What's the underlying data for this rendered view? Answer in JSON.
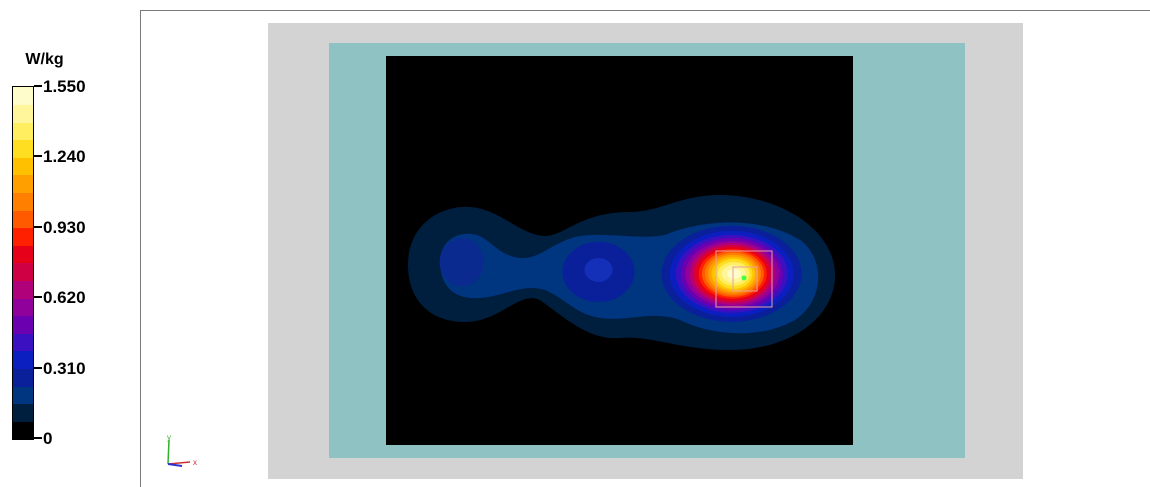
{
  "chart_data": {
    "type": "heatmap",
    "title": "",
    "colorbar": {
      "unit": "W/kg",
      "min": 0,
      "max": 1.55,
      "tick_values": [
        0,
        0.31,
        0.62,
        0.93,
        1.24,
        1.55
      ],
      "tick_labels": [
        "0",
        "0.310",
        "0.620",
        "0.930",
        "1.240",
        "1.550"
      ],
      "levels": 20,
      "colors": [
        "#000000",
        "#001f3f",
        "#003580",
        "#0a1f9a",
        "#0b1fc0",
        "#3a10c0",
        "#6a00b0",
        "#90009a",
        "#b0007a",
        "#d00045",
        "#e6001a",
        "#ff2000",
        "#ff5a00",
        "#ff8000",
        "#ffa000",
        "#ffc000",
        "#ffdd20",
        "#ffee60",
        "#fff59a",
        "#fffccc"
      ]
    },
    "distribution": {
      "hotspots": [
        {
          "x": 0.74,
          "y": 0.555,
          "peak": 1.55
        },
        {
          "x": 0.455,
          "y": 0.55,
          "peak": 0.3
        },
        {
          "x": 0.16,
          "y": 0.53,
          "peak": 0.2
        }
      ]
    },
    "axes_triad": {
      "x_label": "x",
      "y_label": "y"
    }
  },
  "colors": {
    "outer_border": "#d3d3d3",
    "phantom": "#8fc3c3",
    "measurement_area": "#000000",
    "cube_outline": "#e8a0a0",
    "peak_marker": "#40ff40",
    "triad_x": "#d03030",
    "triad_y": "#30b030",
    "triad_z": "#3030d0"
  }
}
